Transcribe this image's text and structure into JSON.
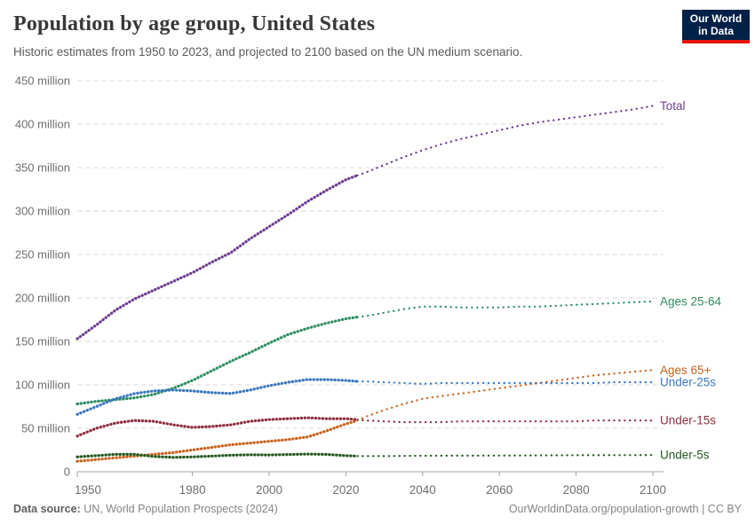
{
  "header": {
    "title": "Population by age group, United States",
    "subtitle": "Historic estimates from 1950 to 2023, and projected to 2100 based on the UN medium scenario."
  },
  "logo": {
    "line1": "Our World",
    "line2": "in Data",
    "bg_color": "#002147",
    "accent_color": "#e3120b"
  },
  "footer": {
    "datasource_label": "Data source:",
    "datasource_value": "UN, World Population Prospects (2024)",
    "right_text": "OurWorldinData.org/population-growth | CC BY"
  },
  "chart_data": {
    "type": "line",
    "title": "Population by age group, United States",
    "xlabel": "",
    "ylabel": "",
    "x_range": [
      1950,
      2100
    ],
    "y_range": [
      0,
      450
    ],
    "y_tick_unit": "million",
    "y_ticks": [
      0,
      50,
      100,
      150,
      200,
      250,
      300,
      350,
      400,
      450
    ],
    "x_ticks": [
      1950,
      1980,
      2000,
      2020,
      2040,
      2060,
      2080,
      2100
    ],
    "grid": true,
    "projection_start": 2023,
    "legend_position": "right-of-line-ends",
    "axis_color": "#a3a3a3",
    "grid_color": "#d9d9d9",
    "tick_label_color": "#6e6e6e",
    "series": [
      {
        "name": "Total",
        "color": "#6d3e91",
        "points": [
          [
            1950,
            153
          ],
          [
            1955,
            169
          ],
          [
            1960,
            186
          ],
          [
            1965,
            199
          ],
          [
            1970,
            209
          ],
          [
            1975,
            219
          ],
          [
            1980,
            229
          ],
          [
            1985,
            241
          ],
          [
            1990,
            252
          ],
          [
            1995,
            268
          ],
          [
            2000,
            282
          ],
          [
            2005,
            296
          ],
          [
            2010,
            311
          ],
          [
            2015,
            324
          ],
          [
            2020,
            336
          ],
          [
            2023,
            341
          ],
          [
            2025,
            344
          ],
          [
            2030,
            353
          ],
          [
            2035,
            362
          ],
          [
            2040,
            370
          ],
          [
            2045,
            377
          ],
          [
            2050,
            383
          ],
          [
            2055,
            388
          ],
          [
            2060,
            393
          ],
          [
            2065,
            398
          ],
          [
            2070,
            402
          ],
          [
            2075,
            405
          ],
          [
            2080,
            408
          ],
          [
            2085,
            411
          ],
          [
            2090,
            414
          ],
          [
            2095,
            417
          ],
          [
            2100,
            421
          ]
        ]
      },
      {
        "name": "Ages 25-64",
        "color": "#2f8e63",
        "points": [
          [
            1950,
            78
          ],
          [
            1955,
            81
          ],
          [
            1960,
            83
          ],
          [
            1965,
            85
          ],
          [
            1970,
            89
          ],
          [
            1975,
            96
          ],
          [
            1980,
            105
          ],
          [
            1985,
            116
          ],
          [
            1990,
            127
          ],
          [
            1995,
            137
          ],
          [
            2000,
            148
          ],
          [
            2005,
            158
          ],
          [
            2010,
            165
          ],
          [
            2015,
            171
          ],
          [
            2020,
            176
          ],
          [
            2023,
            178
          ],
          [
            2025,
            179
          ],
          [
            2030,
            183
          ],
          [
            2035,
            187
          ],
          [
            2040,
            190
          ],
          [
            2045,
            190
          ],
          [
            2050,
            189
          ],
          [
            2055,
            189
          ],
          [
            2060,
            189
          ],
          [
            2065,
            190
          ],
          [
            2070,
            190
          ],
          [
            2075,
            191
          ],
          [
            2080,
            192
          ],
          [
            2085,
            193
          ],
          [
            2090,
            194
          ],
          [
            2095,
            195
          ],
          [
            2100,
            196
          ]
        ]
      },
      {
        "name": "Ages 65+",
        "color": "#c9631e",
        "points": [
          [
            1950,
            12
          ],
          [
            1955,
            14
          ],
          [
            1960,
            16
          ],
          [
            1965,
            18
          ],
          [
            1970,
            20
          ],
          [
            1975,
            22
          ],
          [
            1980,
            25
          ],
          [
            1985,
            28
          ],
          [
            1990,
            31
          ],
          [
            1995,
            33
          ],
          [
            2000,
            35
          ],
          [
            2005,
            37
          ],
          [
            2010,
            40
          ],
          [
            2015,
            47
          ],
          [
            2020,
            55
          ],
          [
            2023,
            59
          ],
          [
            2025,
            63
          ],
          [
            2030,
            71
          ],
          [
            2035,
            78
          ],
          [
            2040,
            84
          ],
          [
            2045,
            87
          ],
          [
            2050,
            90
          ],
          [
            2055,
            93
          ],
          [
            2060,
            96
          ],
          [
            2065,
            99
          ],
          [
            2070,
            102
          ],
          [
            2075,
            105
          ],
          [
            2080,
            108
          ],
          [
            2085,
            111
          ],
          [
            2090,
            113
          ],
          [
            2095,
            115
          ],
          [
            2100,
            117
          ]
        ]
      },
      {
        "name": "Under-25s",
        "color": "#3a77bf",
        "points": [
          [
            1950,
            66
          ],
          [
            1955,
            75
          ],
          [
            1960,
            84
          ],
          [
            1965,
            90
          ],
          [
            1970,
            93
          ],
          [
            1975,
            94
          ],
          [
            1980,
            93
          ],
          [
            1985,
            91
          ],
          [
            1990,
            90
          ],
          [
            1995,
            94
          ],
          [
            2000,
            99
          ],
          [
            2005,
            103
          ],
          [
            2010,
            106
          ],
          [
            2015,
            106
          ],
          [
            2020,
            105
          ],
          [
            2023,
            104
          ],
          [
            2025,
            104
          ],
          [
            2030,
            103
          ],
          [
            2035,
            102
          ],
          [
            2040,
            101
          ],
          [
            2045,
            102
          ],
          [
            2050,
            102
          ],
          [
            2055,
            102
          ],
          [
            2060,
            102
          ],
          [
            2065,
            102
          ],
          [
            2070,
            102
          ],
          [
            2075,
            102
          ],
          [
            2080,
            102
          ],
          [
            2085,
            102
          ],
          [
            2090,
            103
          ],
          [
            2095,
            103
          ],
          [
            2100,
            103
          ]
        ]
      },
      {
        "name": "Under-15s",
        "color": "#8e2f3f",
        "points": [
          [
            1950,
            41
          ],
          [
            1955,
            50
          ],
          [
            1960,
            56
          ],
          [
            1965,
            59
          ],
          [
            1970,
            58
          ],
          [
            1975,
            54
          ],
          [
            1980,
            51
          ],
          [
            1985,
            52
          ],
          [
            1990,
            54
          ],
          [
            1995,
            58
          ],
          [
            2000,
            60
          ],
          [
            2005,
            61
          ],
          [
            2010,
            62
          ],
          [
            2015,
            61
          ],
          [
            2020,
            61
          ],
          [
            2023,
            60
          ],
          [
            2025,
            59
          ],
          [
            2030,
            58
          ],
          [
            2035,
            57
          ],
          [
            2040,
            57
          ],
          [
            2045,
            57
          ],
          [
            2050,
            58
          ],
          [
            2055,
            58
          ],
          [
            2060,
            58
          ],
          [
            2065,
            58
          ],
          [
            2070,
            58
          ],
          [
            2075,
            58
          ],
          [
            2080,
            58
          ],
          [
            2085,
            59
          ],
          [
            2090,
            59
          ],
          [
            2095,
            59
          ],
          [
            2100,
            59
          ]
        ]
      },
      {
        "name": "Under-5s",
        "color": "#24581f",
        "points": [
          [
            1950,
            17
          ],
          [
            1955,
            18.5
          ],
          [
            1960,
            20
          ],
          [
            1965,
            20
          ],
          [
            1970,
            17.5
          ],
          [
            1975,
            16.5
          ],
          [
            1980,
            17
          ],
          [
            1985,
            18
          ],
          [
            1990,
            19
          ],
          [
            1995,
            19.5
          ],
          [
            2000,
            19.3
          ],
          [
            2005,
            19.8
          ],
          [
            2010,
            20.3
          ],
          [
            2015,
            19.9
          ],
          [
            2020,
            18.5
          ],
          [
            2023,
            18
          ],
          [
            2025,
            18
          ],
          [
            2030,
            18
          ],
          [
            2035,
            18.2
          ],
          [
            2040,
            18.4
          ],
          [
            2045,
            18.5
          ],
          [
            2050,
            18.5
          ],
          [
            2055,
            18.6
          ],
          [
            2060,
            18.6
          ],
          [
            2065,
            18.7
          ],
          [
            2070,
            18.8
          ],
          [
            2075,
            18.9
          ],
          [
            2080,
            19
          ],
          [
            2085,
            19
          ],
          [
            2090,
            19.1
          ],
          [
            2095,
            19.1
          ],
          [
            2100,
            19.2
          ]
        ]
      }
    ]
  }
}
